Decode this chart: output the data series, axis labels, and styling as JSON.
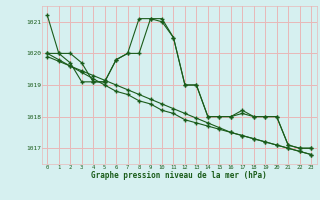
{
  "xlabel": "Graphe pression niveau de la mer (hPa)",
  "background_color": "#d6f0f0",
  "grid_color": "#e8b8b8",
  "line_color": "#1a5c1a",
  "hours": [
    0,
    1,
    2,
    3,
    4,
    5,
    6,
    7,
    8,
    9,
    10,
    11,
    12,
    13,
    14,
    15,
    16,
    17,
    18,
    19,
    20,
    21,
    22,
    23
  ],
  "series1": [
    1021.2,
    1020.0,
    1020.0,
    1019.7,
    1019.1,
    1019.1,
    1019.8,
    1020.0,
    1021.1,
    1021.1,
    1021.0,
    1020.5,
    1019.0,
    1019.0,
    1018.0,
    1018.0,
    1018.0,
    1018.1,
    1018.0,
    1018.0,
    1018.0,
    1017.1,
    1017.0,
    1017.0
  ],
  "series2": [
    1020.0,
    1020.0,
    1019.7,
    1019.1,
    1019.1,
    1019.1,
    1019.8,
    1020.0,
    1020.0,
    1021.1,
    1021.1,
    1020.5,
    1019.0,
    1019.0,
    1018.0,
    1018.0,
    1018.0,
    1018.2,
    1018.0,
    1018.0,
    1018.0,
    1017.1,
    1017.0,
    1017.0
  ],
  "series3": [
    1020.0,
    1019.8,
    1019.6,
    1019.4,
    1019.2,
    1019.0,
    1018.8,
    1018.7,
    1018.5,
    1018.4,
    1018.2,
    1018.1,
    1017.9,
    1017.8,
    1017.7,
    1017.6,
    1017.5,
    1017.4,
    1017.3,
    1017.2,
    1017.1,
    1017.0,
    1016.9,
    1016.8
  ],
  "series4": [
    1019.9,
    1019.75,
    1019.6,
    1019.45,
    1019.3,
    1019.15,
    1019.0,
    1018.85,
    1018.7,
    1018.55,
    1018.4,
    1018.25,
    1018.1,
    1017.95,
    1017.8,
    1017.65,
    1017.5,
    1017.4,
    1017.3,
    1017.2,
    1017.1,
    1017.0,
    1016.9,
    1016.8
  ],
  "ylim": [
    1016.5,
    1021.5
  ],
  "yticks": [
    1017,
    1018,
    1019,
    1020,
    1021
  ],
  "xticks": [
    0,
    1,
    2,
    3,
    4,
    5,
    6,
    7,
    8,
    9,
    10,
    11,
    12,
    13,
    14,
    15,
    16,
    17,
    18,
    19,
    20,
    21,
    22,
    23
  ]
}
